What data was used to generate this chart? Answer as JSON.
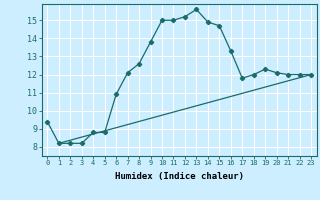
{
  "xlabel": "Humidex (Indice chaleur)",
  "background_color": "#cceeff",
  "grid_color": "#ffffff",
  "line_color": "#1a6b6b",
  "x_ticks": [
    0,
    1,
    2,
    3,
    4,
    5,
    6,
    7,
    8,
    9,
    10,
    11,
    12,
    13,
    14,
    15,
    16,
    17,
    18,
    19,
    20,
    21,
    22,
    23
  ],
  "x_tick_labels": [
    "0",
    "1",
    "2",
    "3",
    "4",
    "5",
    "6",
    "7",
    "8",
    "9",
    "10",
    "11",
    "12",
    "13",
    "14",
    "15",
    "16",
    "17",
    "18",
    "19",
    "20",
    "21",
    "22",
    "23"
  ],
  "y_ticks": [
    8,
    9,
    10,
    11,
    12,
    13,
    14,
    15
  ],
  "xlim": [
    -0.5,
    23.5
  ],
  "ylim": [
    7.5,
    15.9
  ],
  "curve1_x": [
    0,
    1,
    2,
    3,
    4,
    5,
    6,
    7,
    8,
    9,
    10,
    11,
    12,
    13,
    14,
    15,
    16,
    17,
    18,
    19,
    20,
    21,
    22,
    23
  ],
  "curve1_y": [
    9.4,
    8.2,
    8.2,
    8.2,
    8.8,
    8.8,
    10.9,
    12.1,
    12.6,
    13.8,
    15.0,
    15.0,
    15.2,
    15.6,
    14.9,
    14.7,
    13.3,
    11.8,
    12.0,
    12.3,
    12.1,
    12.0,
    12.0,
    12.0
  ],
  "curve2_x": [
    1,
    23
  ],
  "curve2_y": [
    8.2,
    12.0
  ]
}
